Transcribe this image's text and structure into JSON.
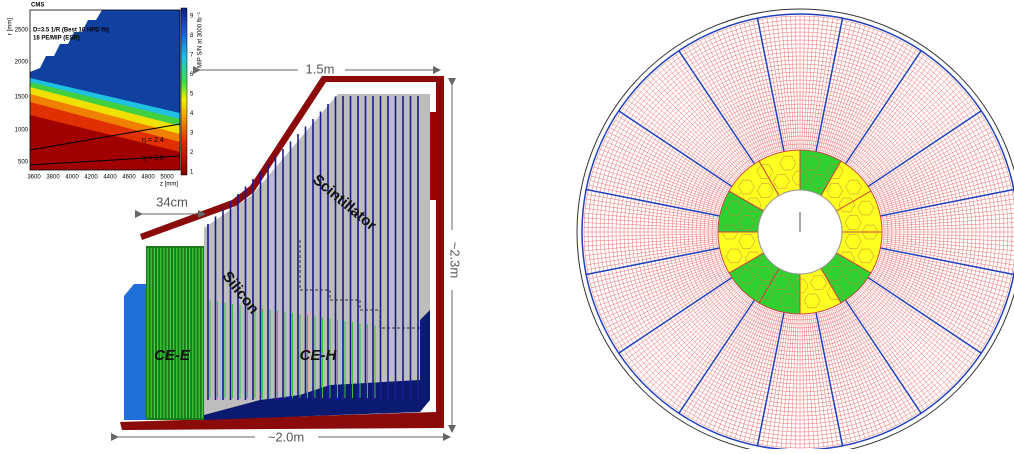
{
  "inset_plot": {
    "experiment": "CMS",
    "fit_label": "D=3.5 1/R (Best 10 HPD fit)",
    "pe_label": "18 PE/MIP (ESR)",
    "y_axis_label": "r [mm]",
    "x_axis_label": "z [mm]",
    "y_tick_labels": [
      "500",
      "1000",
      "1500",
      "2000",
      "2500"
    ],
    "x_tick_labels": [
      "3600",
      "3800",
      "4000",
      "4200",
      "4400",
      "4600",
      "4800",
      "5000"
    ],
    "colorbar_label": "MIP S/N at 3000 fb⁻¹",
    "colorbar_tick_labels": [
      "1",
      "2",
      "3",
      "4",
      "5",
      "6",
      "7",
      "8",
      "9"
    ],
    "eta_labels": [
      "η = 2.4",
      "η = 3.0"
    ]
  },
  "detector": {
    "top_width": "1.5m",
    "ce_e_depth": "34cm",
    "height": "~2.3m",
    "length": "~2.0m",
    "silicon_label": "Silicon",
    "scintillator_label": "Scintillator",
    "ce_e_label": "CE-E",
    "ce_h_label": "CE-H"
  }
}
